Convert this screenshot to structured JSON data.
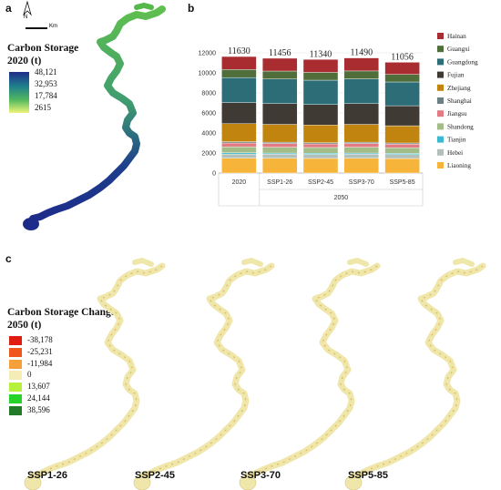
{
  "panels": {
    "a": "a",
    "b": "b",
    "c": "c"
  },
  "panel_a": {
    "north_label": "N",
    "scale_label": "Km",
    "legend_title_line1": "Carbon Storage",
    "legend_title_line2": "2020 (t)",
    "legend_values": [
      "48,121",
      "32,953",
      "17,784",
      "2615"
    ],
    "legend_colors": [
      "#1d2c8a",
      "#1f7f8c",
      "#52b85e",
      "#eef57a"
    ]
  },
  "panel_c": {
    "legend_title_line1": "Carbon Storage Change",
    "legend_title_line2": "2050 (t)",
    "legend_items": [
      {
        "label": "-38,178",
        "color": "#e01b0f"
      },
      {
        "label": "-25,231",
        "color": "#f0561c"
      },
      {
        "label": "-11,984",
        "color": "#f6a03a"
      },
      {
        "label": "0",
        "color": "#f4eeb6"
      },
      {
        "label": "13,607",
        "color": "#b6f03c"
      },
      {
        "label": "24,144",
        "color": "#27d32a"
      },
      {
        "label": "38,596",
        "color": "#237a28"
      }
    ],
    "scenarios": [
      "SSP1-26",
      "SSP2-45",
      "SSP3-70",
      "SSP5-85"
    ]
  },
  "chart_data": {
    "type": "bar",
    "stacked": true,
    "categories": [
      "2020",
      "SSP1-26",
      "SSP2-45",
      "SSP3-70",
      "SSP5-85"
    ],
    "group_labels": [
      {
        "label": "2020",
        "span": [
          0,
          0
        ]
      },
      {
        "label": "2050",
        "span": [
          1,
          4
        ]
      }
    ],
    "ylim": [
      0,
      14000
    ],
    "yticks": [
      0,
      2000,
      4000,
      6000,
      8000,
      10000,
      12000
    ],
    "totals": [
      11630,
      11456,
      11340,
      11490,
      11056
    ],
    "series": [
      {
        "name": "Liaoning",
        "color": "#f6b43b",
        "values": [
          1480,
          1470,
          1460,
          1470,
          1450
        ]
      },
      {
        "name": "Hebei",
        "color": "#b3c0ba",
        "values": [
          420,
          410,
          400,
          410,
          400
        ]
      },
      {
        "name": "Tianjin",
        "color": "#3cb8cf",
        "values": [
          120,
          115,
          110,
          115,
          110
        ]
      },
      {
        "name": "Shandong",
        "color": "#a3bd89",
        "values": [
          600,
          590,
          580,
          590,
          570
        ]
      },
      {
        "name": "Jiangsu",
        "color": "#e27b83",
        "values": [
          380,
          370,
          360,
          370,
          350
        ]
      },
      {
        "name": "Shanghai",
        "color": "#6c7f82",
        "values": [
          130,
          125,
          120,
          125,
          120
        ]
      },
      {
        "name": "Zhejiang",
        "color": "#c1850f",
        "values": [
          1800,
          1780,
          1760,
          1780,
          1720
        ]
      },
      {
        "name": "Fujian",
        "color": "#3f3a34",
        "values": [
          2100,
          2070,
          2050,
          2070,
          2000
        ]
      },
      {
        "name": "Guangdong",
        "color": "#2d6d77",
        "values": [
          2500,
          2460,
          2430,
          2470,
          2370
        ]
      },
      {
        "name": "Guangxi",
        "color": "#506e3a",
        "values": [
          800,
          790,
          780,
          790,
          760
        ]
      },
      {
        "name": "Hainan",
        "color": "#a92c30",
        "values": [
          1300,
          1276,
          1290,
          1300,
          1206
        ]
      }
    ],
    "legend_position": "right"
  }
}
